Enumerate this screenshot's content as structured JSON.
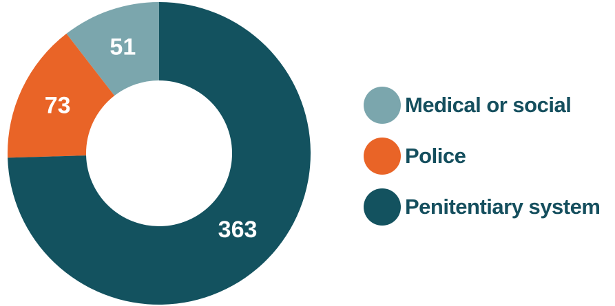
{
  "chart_data": {
    "type": "pie",
    "donut": true,
    "categories": [
      "Medical or social",
      "Police",
      "Penitentiary system"
    ],
    "values": [
      51,
      73,
      363
    ],
    "colors": [
      "#7ba6ad",
      "#e96427",
      "#13525f"
    ],
    "title": "",
    "legend_position": "right",
    "data_labels": [
      "51",
      "73",
      "363"
    ]
  },
  "legend": {
    "items": [
      {
        "label": "Medical or social",
        "color": "#7ba6ad"
      },
      {
        "label": "Police",
        "color": "#e96427"
      },
      {
        "label": "Penitentiary system",
        "color": "#13525f"
      }
    ]
  }
}
